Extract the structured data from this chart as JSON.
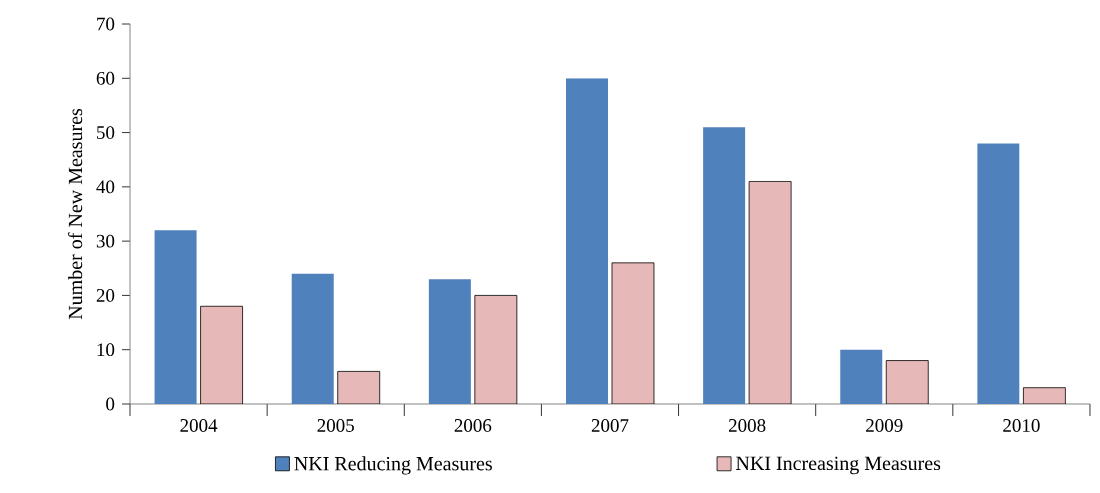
{
  "chart_data": {
    "type": "bar",
    "ylabel": "Number of New Measures",
    "categories": [
      "2004",
      "2005",
      "2006",
      "2007",
      "2008",
      "2009",
      "2010"
    ],
    "series": [
      {
        "name": "NKI Reducing Measures",
        "color": "#4f81bd",
        "values": [
          32,
          24,
          23,
          60,
          51,
          10,
          48
        ]
      },
      {
        "name": "NKI Increasing Measures",
        "color": "#e6b9b8",
        "values": [
          18,
          6,
          20,
          26,
          41,
          8,
          3
        ]
      }
    ],
    "ylim": [
      0,
      70
    ],
    "yticks": [
      0,
      10,
      20,
      30,
      40,
      50,
      60,
      70
    ],
    "legend": "bottom"
  }
}
